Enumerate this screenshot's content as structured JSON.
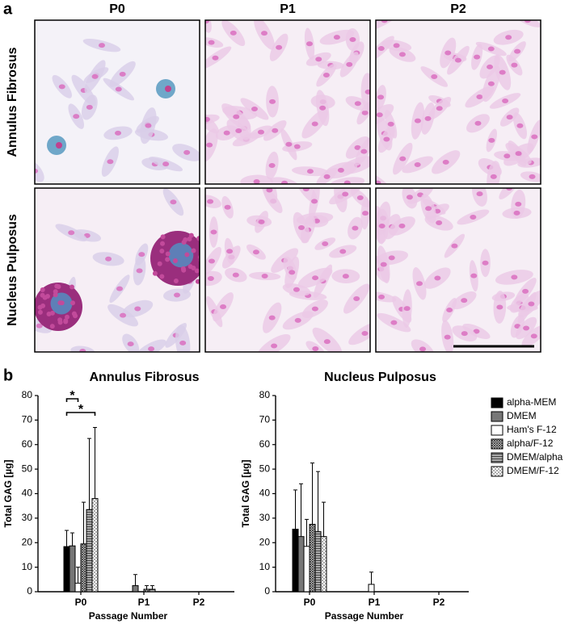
{
  "panel_labels": [
    "a",
    "b"
  ],
  "micrographs": {
    "columns": [
      "P0",
      "P1",
      "P2"
    ],
    "rows": [
      "Annulus Fibrosus",
      "Nucleus Pulposus"
    ]
  },
  "chart_data": [
    {
      "type": "bar",
      "title": "Annulus Fibrosus",
      "x_label": "Passage Number",
      "y_label": "Total GAG [µg]",
      "categories": [
        "P0",
        "P1",
        "P2"
      ],
      "ylim": [
        0,
        80
      ],
      "yticks": [
        0,
        10,
        20,
        30,
        40,
        50,
        60,
        70,
        80
      ],
      "legend": false,
      "series": [
        {
          "name": "alpha-MEM",
          "color": "#000000",
          "values": [
            18.4,
            0,
            0
          ],
          "errors": [
            6.6,
            0,
            0
          ]
        },
        {
          "name": "DMEM",
          "color": "#777777",
          "values": [
            18.7,
            2.5,
            0
          ],
          "errors": [
            5.3,
            4.5,
            0
          ]
        },
        {
          "name": "Ham's F-12",
          "color": "#ffffff",
          "values": [
            3.5,
            0,
            0
          ],
          "errors": [
            6.5,
            0,
            0
          ]
        },
        {
          "name": "alpha/F-12",
          "color": "#555555",
          "pattern": "crosshatch",
          "values": [
            19.5,
            1,
            0
          ],
          "errors": [
            17,
            1.5,
            0
          ]
        },
        {
          "name": "DMEM/alpha",
          "color": "#888888",
          "pattern": "horizontal",
          "values": [
            33.5,
            1,
            0
          ],
          "errors": [
            29,
            1.5,
            0
          ]
        },
        {
          "name": "DMEM/F-12",
          "color": "#bbbbbb",
          "pattern": "checker",
          "values": [
            38,
            0,
            0
          ],
          "errors": [
            29,
            0,
            0
          ]
        }
      ],
      "significance": [
        {
          "label": "*",
          "between": [
            0,
            2
          ]
        },
        {
          "label": "*",
          "between": [
            0,
            5
          ]
        }
      ]
    },
    {
      "type": "bar",
      "title": "Nucleus Pulposus",
      "x_label": "Passage Number",
      "y_label": "Total GAG [µg]",
      "categories": [
        "P0",
        "P1",
        "P2"
      ],
      "ylim": [
        0,
        80
      ],
      "yticks": [
        0,
        10,
        20,
        30,
        40,
        50,
        60,
        70,
        80
      ],
      "legend": "right",
      "series": [
        {
          "name": "alpha-MEM",
          "color": "#000000",
          "values": [
            25.5,
            0,
            0
          ],
          "errors": [
            16,
            0,
            0
          ]
        },
        {
          "name": "DMEM",
          "color": "#777777",
          "values": [
            22.5,
            0,
            0
          ],
          "errors": [
            21.5,
            0,
            0
          ]
        },
        {
          "name": "Ham's F-12",
          "color": "#ffffff",
          "values": [
            18.5,
            3,
            0
          ],
          "errors": [
            11,
            5,
            0
          ]
        },
        {
          "name": "alpha/F-12",
          "color": "#555555",
          "pattern": "crosshatch",
          "values": [
            27.5,
            0,
            0
          ],
          "errors": [
            25,
            0,
            0
          ]
        },
        {
          "name": "DMEM/alpha",
          "color": "#888888",
          "pattern": "horizontal",
          "values": [
            24.5,
            0,
            0
          ],
          "errors": [
            24.5,
            0,
            0
          ]
        },
        {
          "name": "DMEM/F-12",
          "color": "#bbbbbb",
          "pattern": "checker",
          "values": [
            22.5,
            0,
            0
          ],
          "errors": [
            14,
            0,
            0
          ]
        }
      ]
    }
  ]
}
